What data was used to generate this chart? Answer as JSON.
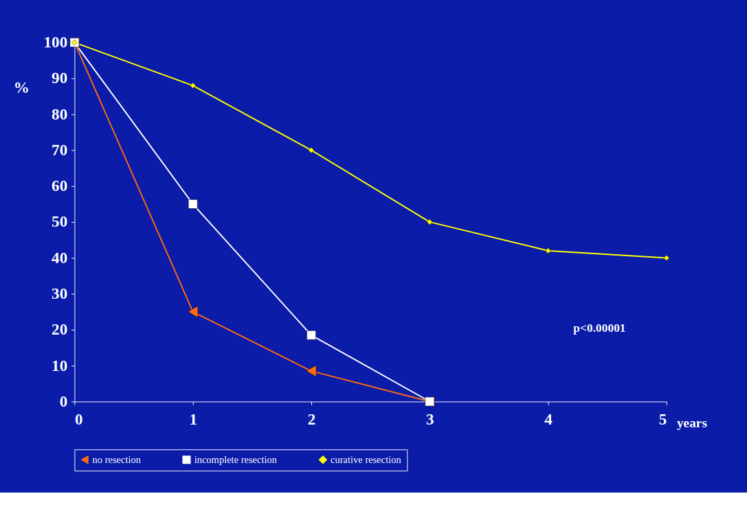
{
  "chart_data": {
    "type": "line",
    "xlabel": "years",
    "ylabel": "%",
    "xlim": [
      0,
      5
    ],
    "xticks": [
      0,
      1,
      2,
      3,
      4,
      5
    ],
    "ylim": [
      0,
      100
    ],
    "yticks": [
      0,
      10,
      20,
      30,
      40,
      50,
      60,
      70,
      80,
      90,
      100
    ],
    "series": [
      {
        "name": "no resection",
        "color": "#ff6a13",
        "x": [
          0,
          1,
          2,
          3
        ],
        "values": [
          100,
          25,
          8.5,
          0
        ],
        "marker": "triangle"
      },
      {
        "name": "incomplete resection",
        "color": "#ffffff",
        "x": [
          0,
          1,
          2,
          3
        ],
        "values": [
          100,
          55,
          18.5,
          0
        ],
        "marker": "square"
      },
      {
        "name": "curative resection",
        "color": "#ffff00",
        "x": [
          0,
          1,
          2,
          3,
          4,
          5
        ],
        "values": [
          100,
          88,
          70,
          50,
          42,
          40
        ],
        "marker": "diamond"
      }
    ],
    "annotations": [
      "p<0.00001"
    ],
    "legend": "bottom",
    "grid": false
  }
}
